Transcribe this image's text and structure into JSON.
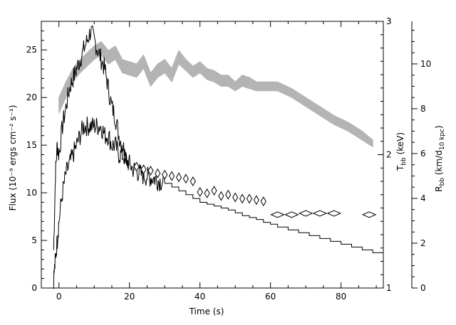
{
  "chart_data": {
    "type": "line",
    "xlabel": "Time (s)",
    "xlim": [
      -5,
      92
    ],
    "x_ticks": [
      "0",
      "20",
      "40",
      "60",
      "80"
    ],
    "ylabel_left": "Flux (10⁻⁹ ergs cm⁻² s⁻¹)",
    "ylim_left": [
      0,
      28
    ],
    "left_ticks": [
      "0",
      "5",
      "10",
      "15",
      "20",
      "25"
    ],
    "ylabel_t": "T",
    "ylabel_t_sub": "bb",
    "ylabel_t_unit": " (keV)",
    "ylim_t": [
      1,
      3
    ],
    "t_ticks": [
      "1",
      "2",
      "3"
    ],
    "ylabel_r": "R",
    "ylabel_r_sub": "bb",
    "ylabel_r_unit": " (km/d",
    "ylabel_r_unit_sub": "10 kpc",
    "ylabel_r_unit_end": ")",
    "ylim_r": [
      0,
      11.9
    ],
    "r_ticks": [
      "0",
      "2",
      "4",
      "6",
      "8",
      "10"
    ],
    "series": [
      {
        "style": "black-noisy-line-high",
        "x": [
          -1.5,
          -1,
          -0.5,
          0,
          1,
          2,
          3,
          4,
          5,
          6,
          7,
          8,
          9,
          10,
          11,
          12,
          13,
          14,
          15,
          16,
          17,
          18,
          19,
          20
        ],
        "y": [
          4,
          12,
          15,
          14,
          17,
          19,
          21,
          22,
          23,
          24,
          25,
          26,
          27,
          26,
          25,
          24,
          23,
          21,
          19,
          18,
          16,
          15,
          14,
          13
        ]
      },
      {
        "style": "black-noisy-line-low",
        "x": [
          -1.5,
          -1,
          -0.5,
          0,
          1,
          2,
          3,
          4,
          5,
          6,
          7,
          8,
          9,
          10,
          11,
          12,
          13,
          14,
          15,
          16,
          17,
          18,
          19,
          20,
          21,
          22,
          23,
          24,
          25,
          26,
          27,
          28,
          29,
          30
        ],
        "y": [
          1,
          3,
          5,
          7,
          10,
          12,
          13,
          14,
          15,
          16,
          17,
          17,
          17,
          17,
          17,
          17,
          16,
          16,
          15,
          15,
          14,
          14,
          13.5,
          13,
          12.5,
          12.3,
          12,
          11.8,
          11.7,
          11.6,
          11.5,
          11.3,
          11.2,
          11
        ]
      },
      {
        "style": "black-step-line",
        "x": [
          30,
          32,
          34,
          36,
          38,
          40,
          42,
          44,
          46,
          48,
          50,
          52,
          54,
          56,
          58,
          60,
          62,
          65,
          68,
          71,
          74,
          77,
          80,
          83,
          86,
          89,
          92
        ],
        "y": [
          11,
          10.6,
          10.2,
          9.8,
          9.4,
          9.0,
          8.8,
          8.6,
          8.4,
          8.2,
          7.9,
          7.6,
          7.4,
          7.2,
          6.9,
          6.7,
          6.4,
          6.1,
          5.8,
          5.5,
          5.2,
          4.9,
          4.6,
          4.3,
          4.0,
          3.7,
          3.4
        ]
      },
      {
        "style": "grey-band",
        "axis": "radius",
        "x": [
          0,
          2,
          4,
          6,
          8,
          10,
          12,
          14,
          16,
          18,
          20,
          22,
          24,
          26,
          28,
          30,
          32,
          34,
          36,
          38,
          40,
          42,
          44,
          46,
          48,
          50,
          52,
          54,
          56,
          58,
          60,
          62,
          66,
          70,
          74,
          78,
          82,
          86,
          89
        ],
        "y": [
          8.5,
          9.2,
          9.8,
          10.2,
          10.5,
          10.8,
          11.0,
          10.6,
          10.8,
          10.2,
          10.1,
          10.0,
          10.4,
          9.6,
          10.0,
          10.2,
          9.8,
          10.6,
          10.2,
          9.9,
          10.1,
          9.8,
          9.7,
          9.5,
          9.5,
          9.2,
          9.5,
          9.4,
          9.2,
          9.2,
          9.2,
          9.2,
          8.9,
          8.5,
          8.1,
          7.7,
          7.4,
          7.0,
          6.6
        ],
        "y_lo": [
          7.8,
          8.5,
          9.2,
          9.6,
          9.9,
          10.2,
          10.4,
          10.0,
          10.2,
          9.6,
          9.5,
          9.4,
          9.8,
          9.0,
          9.4,
          9.6,
          9.2,
          10.0,
          9.7,
          9.4,
          9.6,
          9.3,
          9.2,
          9.0,
          9.0,
          8.8,
          9.0,
          8.9,
          8.8,
          8.8,
          8.8,
          8.8,
          8.5,
          8.1,
          7.7,
          7.3,
          7.0,
          6.6,
          6.3
        ]
      },
      {
        "style": "diamonds",
        "axis": "temperature",
        "x": [
          22,
          24,
          26,
          28,
          30,
          32,
          34,
          36,
          38,
          40,
          42,
          44,
          46,
          48,
          50,
          52,
          54,
          56,
          58,
          62,
          66,
          70,
          74,
          78,
          88
        ],
        "y": [
          1.91,
          1.89,
          1.88,
          1.86,
          1.85,
          1.84,
          1.83,
          1.82,
          1.8,
          1.72,
          1.71,
          1.73,
          1.69,
          1.7,
          1.68,
          1.67,
          1.67,
          1.66,
          1.65,
          1.55,
          1.55,
          1.56,
          1.56,
          1.56,
          1.55
        ]
      }
    ]
  }
}
